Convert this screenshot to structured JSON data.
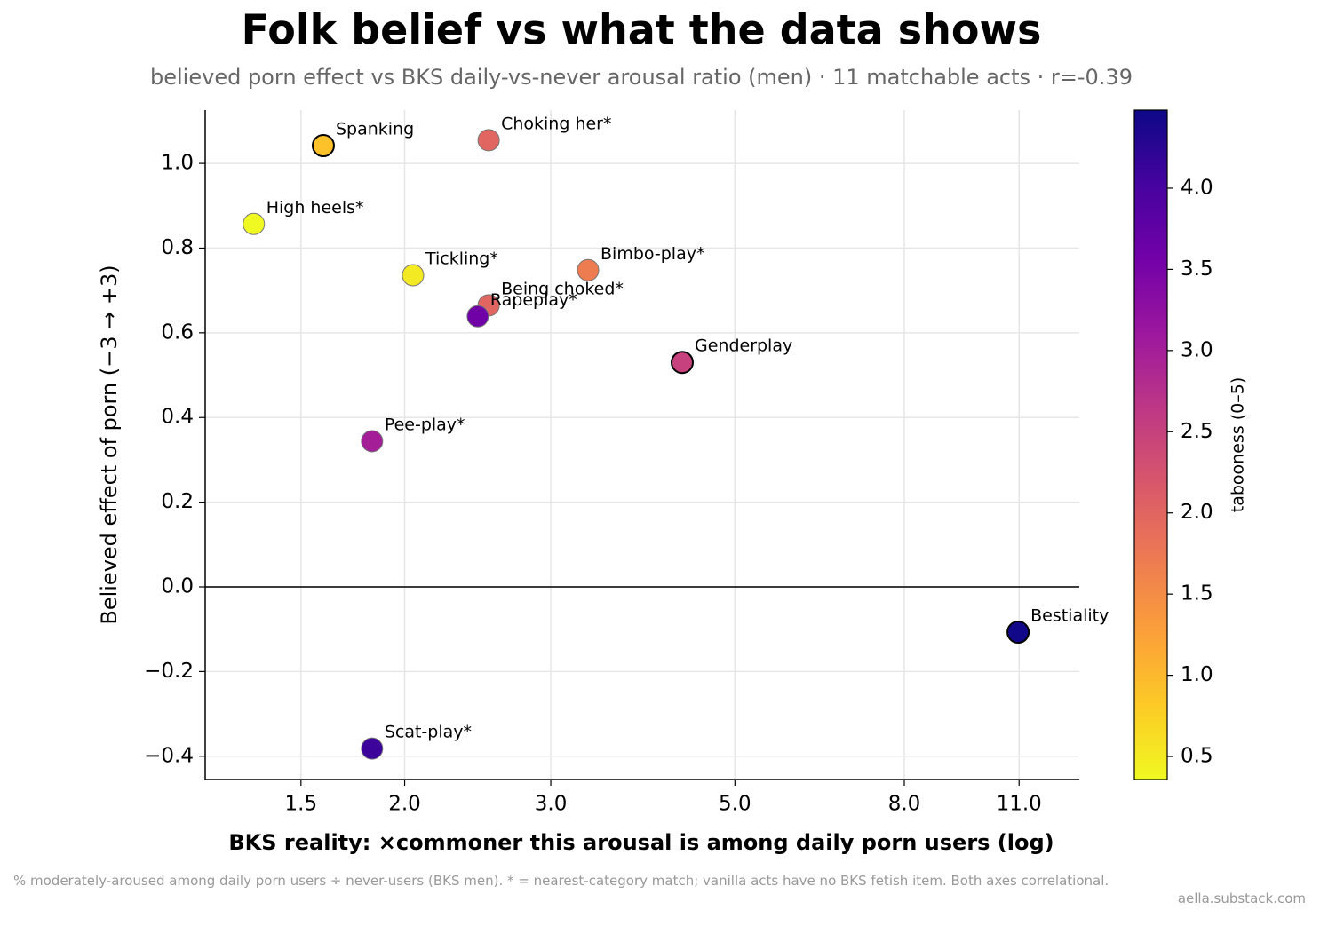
{
  "chart_data": {
    "type": "scatter",
    "title": "Folk belief vs what the data shows",
    "subtitle": "believed porn effect vs BKS daily-vs-never arousal ratio (men) · 11 matchable acts · r=-0.39",
    "x_label": "BKS reality: ×commoner this arousal is among daily porn users (log)",
    "y_label": "Believed effect of porn (−3 → +3)",
    "colorbar_label": "tabooness (0–5)",
    "footnote": "% moderately-aroused among daily porn users ÷ never-users (BKS men). * = nearest-category match; vanilla acts have no BKS fetish item. Both axes correlational.",
    "source": "aella.substack.com",
    "point_labels": [
      "Spanking",
      "Choking her*",
      "High heels*",
      "Tickling*",
      "Bimbo-play*",
      "Being choked*",
      "Rapeplay*",
      "Genderplay",
      "Pee-play*",
      "Bestiality",
      "Scat-play*"
    ],
    "x": [
      1.596,
      2.525,
      1.316,
      2.047,
      3.327,
      2.525,
      2.45,
      4.32,
      1.827,
      10.97,
      1.827
    ],
    "values": [
      1.042,
      1.055,
      0.857,
      0.736,
      0.748,
      0.665,
      0.639,
      0.53,
      0.344,
      -0.107,
      -0.382
    ],
    "c": [
      0.9,
      2.0,
      0.3,
      0.5,
      1.7,
      2.0,
      3.6,
      2.5,
      3.0,
      4.45,
      4.1
    ],
    "edgecolors": [
      "#000000",
      "#777777",
      "#777777",
      "#777777",
      "#777777",
      "#777777",
      "#777777",
      "#000000",
      "#777777",
      "#000000",
      "#777777"
    ],
    "colormap": [
      "#f0f921",
      "#fdca26",
      "#fb9f3a",
      "#ed7953",
      "#d8576b",
      "#bd3786",
      "#9c179e",
      "#7201a8",
      "#46039f",
      "#0d0887"
    ],
    "x_scale": "log",
    "xlim": [
      1.15,
      13.0
    ],
    "xticks": [
      1.5,
      {
        "value": 2,
        "label": "2.0"
      },
      {
        "value": 3,
        "label": "3.0"
      },
      {
        "value": 5,
        "label": "5.0"
      },
      {
        "value": 8,
        "label": "8.0"
      },
      {
        "value": 11,
        "label": "11.0"
      }
    ],
    "ylim": [
      -0.455,
      1.126
    ],
    "yticks": [
      {
        "value": -0.4,
        "label": "−0.4"
      },
      {
        "value": -0.2,
        "label": "−0.2"
      },
      {
        "value": 0,
        "label": "0.0"
      },
      0.2,
      0.4,
      0.6,
      0.8,
      {
        "value": 1,
        "label": "1.0"
      }
    ],
    "axhline": 0,
    "clim": [
      0.358,
      4.481
    ],
    "cticks": [
      0.5,
      {
        "value": 1,
        "label": "1.0"
      },
      1.5,
      {
        "value": 2,
        "label": "2.0"
      },
      2.5,
      {
        "value": 3,
        "label": "3.0"
      },
      3.5,
      {
        "value": 4,
        "label": "4.0"
      }
    ],
    "grid": true
  }
}
